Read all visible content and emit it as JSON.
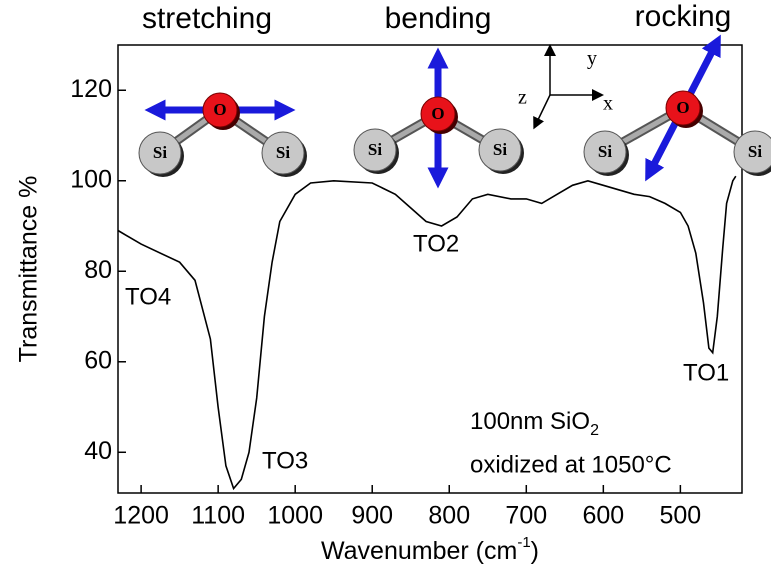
{
  "chart_data": {
    "type": "line",
    "y_label": "Transmittance %",
    "x_label": [
      "Wavenumber (cm",
      "-1",
      ")"
    ],
    "x": [
      1230,
      1200,
      1150,
      1130,
      1110,
      1100,
      1090,
      1080,
      1070,
      1060,
      1050,
      1040,
      1030,
      1020,
      1000,
      980,
      950,
      900,
      870,
      850,
      830,
      810,
      790,
      770,
      750,
      720,
      700,
      680,
      660,
      640,
      620,
      600,
      580,
      560,
      540,
      520,
      500,
      490,
      480,
      470,
      463,
      458,
      452,
      445,
      440,
      432,
      428
    ],
    "series": [
      {
        "color": "#000000",
        "values": [
          89,
          86,
          82,
          78,
          65,
          50,
          37,
          32,
          34,
          40,
          52,
          70,
          82,
          91,
          97,
          99.5,
          100,
          99.5,
          97,
          94,
          91,
          90,
          92,
          96,
          97,
          96,
          96,
          95,
          97,
          99,
          100,
          99,
          98,
          97,
          96.5,
          95,
          93,
          90,
          84,
          73,
          63,
          62,
          70,
          85,
          95,
          100,
          101
        ]
      }
    ],
    "xlim": [
      1230,
      420
    ],
    "xticks": [
      1200,
      1100,
      1000,
      900,
      800,
      700,
      600,
      500
    ],
    "ylim": [
      31,
      130
    ],
    "yticks": [
      40,
      60,
      80,
      100,
      120
    ],
    "annotations": [
      "TO4",
      "TO3",
      "TO2",
      "TO1"
    ],
    "sample": [
      "100nm SiO",
      "2",
      "oxidized at 1050°C"
    ],
    "modes": [
      {
        "title": "stretching",
        "atoms": [
          "O",
          "Si",
          "Si"
        ]
      },
      {
        "title": "bending",
        "atoms": [
          "O",
          "Si",
          "Si"
        ]
      },
      {
        "title": "rocking",
        "atoms": [
          "O",
          "Si",
          "Si"
        ]
      }
    ],
    "axes_labels": [
      "x",
      "y",
      "z"
    ]
  }
}
